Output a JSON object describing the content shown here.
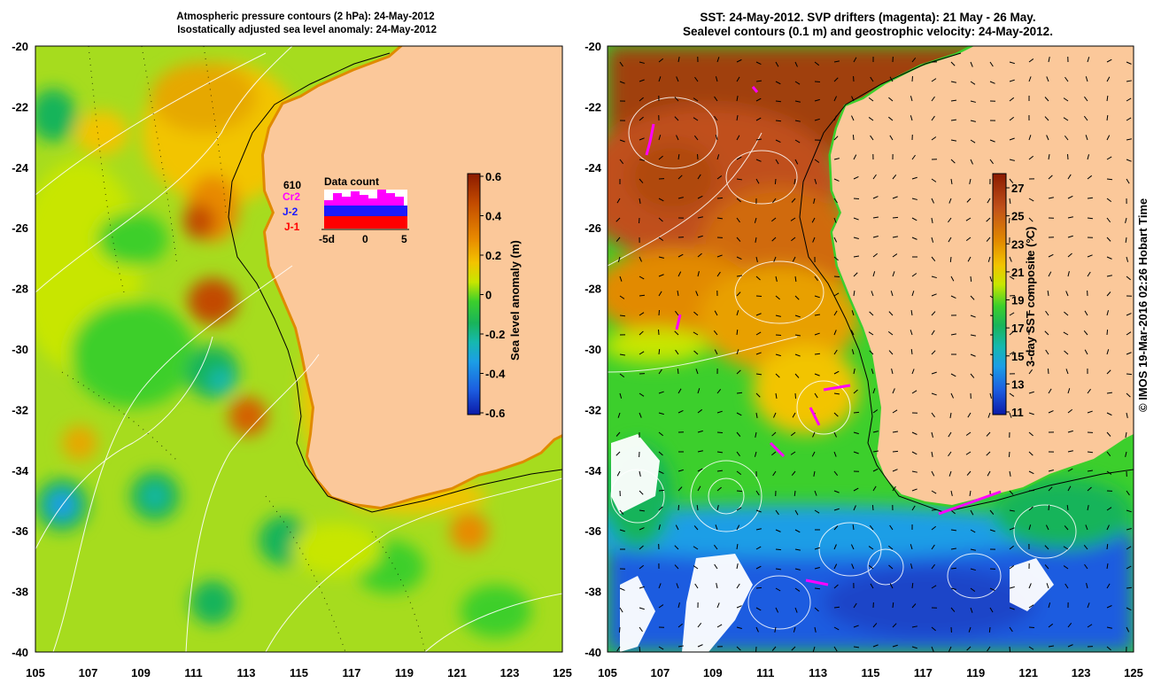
{
  "left_panel": {
    "title": "Atmospheric pressure contours (2 hPa): 24-May-2012\n Isostatically adjusted sea level anomaly: 24-May-2012",
    "colorbar": {
      "label": "Sea level anomaly (m)",
      "ticks": [
        "0.6",
        "0.4",
        "0.2",
        "0",
        "-0.2",
        "-0.4",
        "-0.6"
      ],
      "colors": [
        "#8b1a00",
        "#c24a00",
        "#e88a00",
        "#f2c400",
        "#c8e600",
        "#3ccf2c",
        "#19b45a",
        "#16b8b0",
        "#1c9ee6",
        "#1c5ce0",
        "#0b1aa8"
      ]
    },
    "data_count": {
      "title": "Data count",
      "labels": [
        "610",
        "Cr2",
        "J-2",
        "J-1"
      ],
      "label_colors": [
        "#000000",
        "#ff00ff",
        "#1a1aff",
        "#ff0000"
      ],
      "x_ticks": [
        "-5d",
        "0",
        "5"
      ]
    }
  },
  "right_panel": {
    "title": "SST: 24-May-2012. SVP drifters (magenta): 21 May - 26 May.\nSealevel contours (0.1 m) and geostrophic velocity: 24-May-2012.",
    "colorbar": {
      "label": "3-day SST composite (°C)",
      "ticks": [
        "27",
        "25",
        "23",
        "21",
        "19",
        "17",
        "15",
        "13",
        "11"
      ],
      "colors": [
        "#8b1a00",
        "#c0501a",
        "#e28a00",
        "#f2c400",
        "#c8e600",
        "#3ccf2c",
        "#19b45a",
        "#16b8b0",
        "#1c9ee6",
        "#1c5ce0",
        "#0b1aa8"
      ]
    }
  },
  "axes": {
    "y_ticks": [
      "-20",
      "-22",
      "-24",
      "-26",
      "-28",
      "-30",
      "-32",
      "-34",
      "-36",
      "-38",
      "-40"
    ],
    "x_ticks": [
      "105",
      "107",
      "109",
      "111",
      "113",
      "115",
      "117",
      "119",
      "121",
      "123",
      "125"
    ]
  },
  "colors": {
    "land": "#fbc89a"
  },
  "credit": "© IMOS 19-Mar-2016 02:26 Hobart Time"
}
